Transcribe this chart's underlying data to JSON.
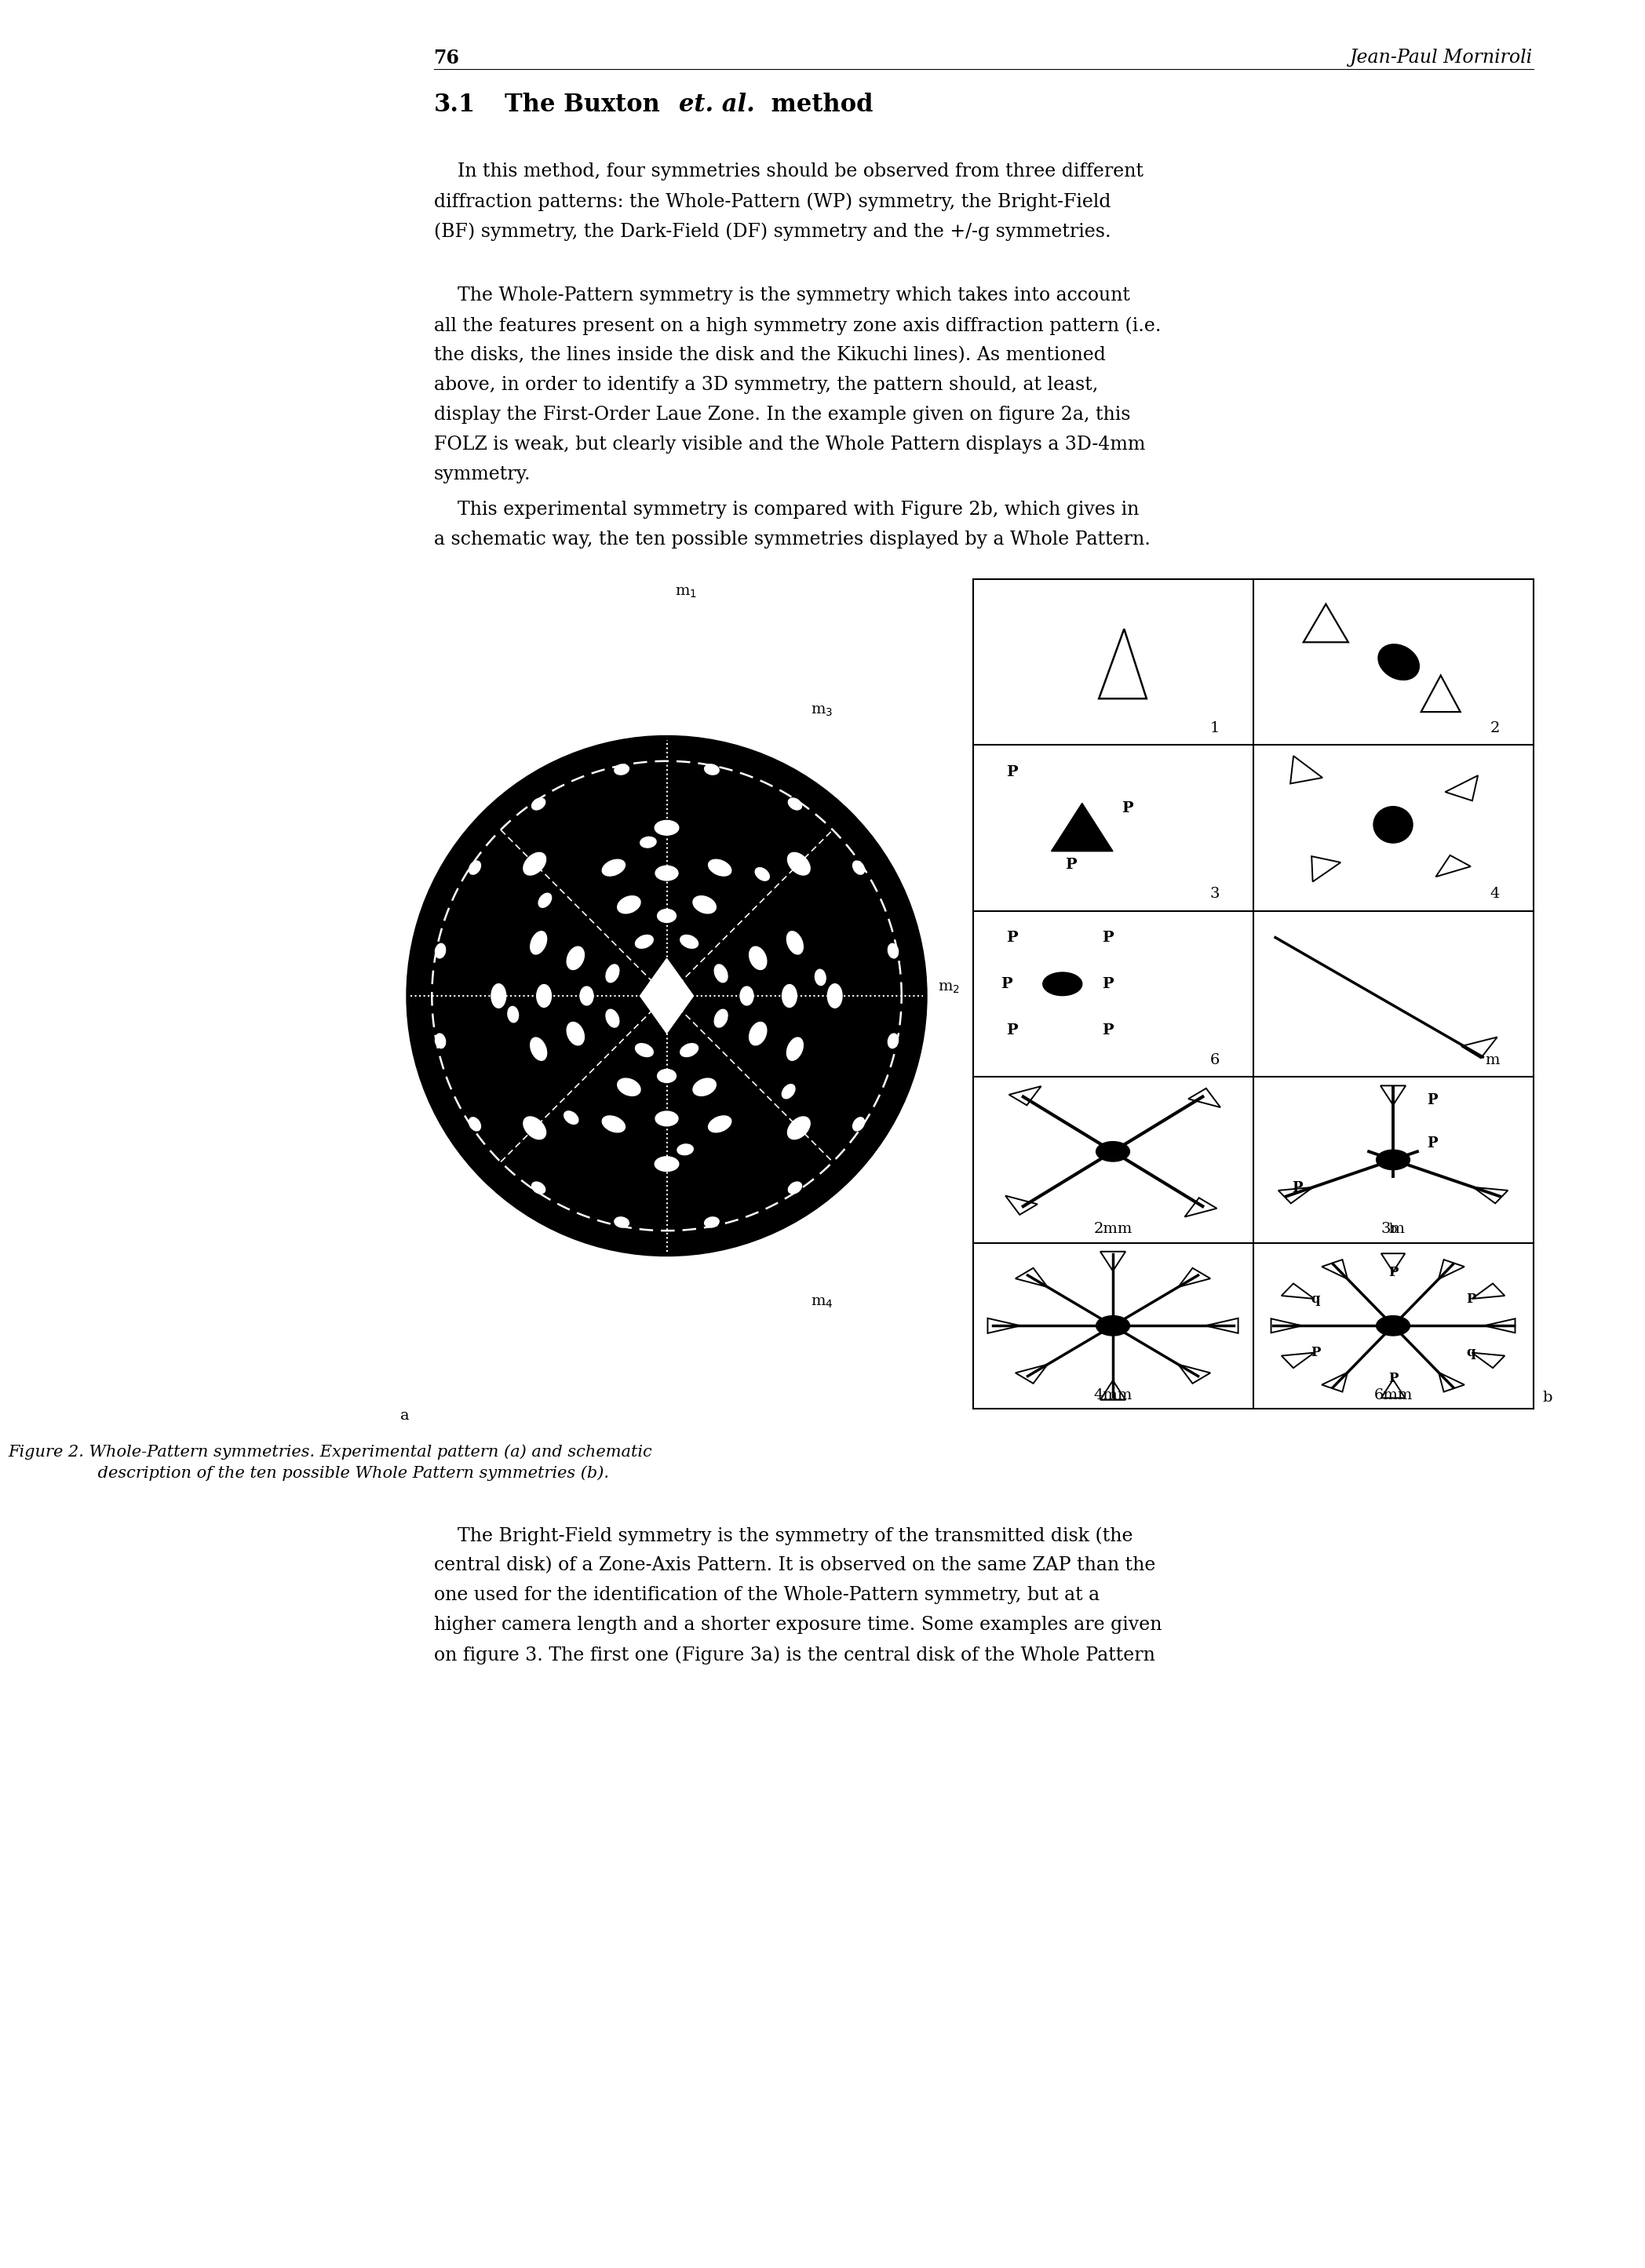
{
  "page_number": "76",
  "header_right": "Jean-Paul Morniroli",
  "section_num": "3.1",
  "section_title_plain": "The Buxton ",
  "section_title_italic": "et. al.",
  "section_title_end": " method",
  "p1_lines": [
    "    In this method, four symmetries should be observed from three different",
    "diffraction patterns: the Whole-Pattern (WP) symmetry, the Bright-Field",
    "(BF) symmetry, the Dark-Field (DF) symmetry and the +/-g symmetries."
  ],
  "p2_lines": [
    "    The Whole-Pattern symmetry is the symmetry which takes into account",
    "all the features present on a high symmetry zone axis diffraction pattern (i.e.",
    "the disks, the lines inside the disk and the Kikuchi lines). As mentioned",
    "above, in order to identify a 3D symmetry, the pattern should, at least,",
    "display the First-Order Laue Zone. In the example given on figure 2a, this",
    "FOLZ is weak, but clearly visible and the Whole Pattern displays a 3D-4mm",
    "symmetry."
  ],
  "p3_lines": [
    "    This experimental symmetry is compared with Figure 2b, which gives in",
    "a schematic way, the ten possible symmetries displayed by a Whole Pattern."
  ],
  "cap_lines": [
    "Figure 2. Whole-Pattern symmetries. Experimental pattern (a) and schematic",
    "         description of the ten possible Whole Pattern symmetries (b)."
  ],
  "p4_lines": [
    "    The Bright-Field symmetry is the symmetry of the transmitted disk (the",
    "central disk) of a Zone-Axis Pattern. It is observed on the same ZAP than the",
    "one used for the identification of the Whole-Pattern symmetry, but at a",
    "higher camera length and a shorter exposure time. Some examples are given",
    "on figure 3. The first one (Figure 3a) is the central disk of the Whole Pattern"
  ],
  "bg_color": "#ffffff",
  "text_color": "#000000",
  "fs_body": 17,
  "fs_header": 17,
  "fs_section": 22,
  "fs_caption": 15,
  "fs_cell_label": 14,
  "fs_cell_sym": 14,
  "lh": 38,
  "ml": 133,
  "mr": 1534
}
